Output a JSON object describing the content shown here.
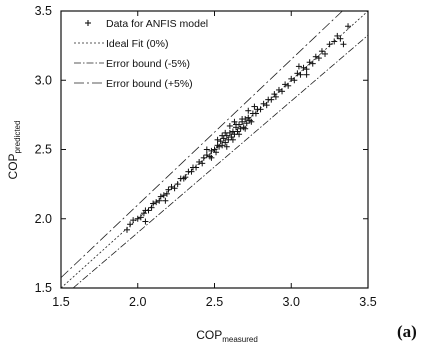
{
  "chart_data": {
    "type": "scatter",
    "xlabel": "COP",
    "xlabel_subscript": "measured",
    "ylabel": "COP",
    "ylabel_subscript": "predicted",
    "xlim": [
      1.5,
      3.5
    ],
    "ylim": [
      1.5,
      3.5
    ],
    "xticks": [
      "1.5",
      "2.0",
      "2.5",
      "3.0",
      "3.5"
    ],
    "yticks": [
      "1.5",
      "2.0",
      "2.5",
      "3.0",
      "3.5"
    ],
    "grid": false,
    "legend_position": "top-left",
    "legend": [
      {
        "label": "Data for ANFIS model",
        "style": "marker-plus"
      },
      {
        "label": "Ideal Fit (0%)",
        "style": "dotted"
      },
      {
        "label": "Error bound (-5%)",
        "style": "dash-dot"
      },
      {
        "label": "Error bound (+5%)",
        "style": "dash-dot-long"
      }
    ],
    "lines": [
      {
        "name": "Ideal Fit (0%)",
        "factor": 1.0
      },
      {
        "name": "Error bound (-5%)",
        "factor": 0.95
      },
      {
        "name": "Error bound (+5%)",
        "factor": 1.05
      }
    ],
    "series": [
      {
        "name": "Data for ANFIS model",
        "x": [
          1.93,
          1.95,
          1.97,
          2.0,
          2.02,
          2.04,
          2.05,
          2.07,
          2.09,
          2.1,
          2.12,
          2.14,
          2.15,
          2.17,
          2.19,
          2.2,
          2.22,
          2.24,
          2.26,
          2.28,
          2.3,
          2.31,
          2.33,
          2.35,
          2.36,
          2.38,
          2.4,
          2.42,
          2.43,
          2.45,
          2.47,
          2.48,
          2.5,
          2.51,
          2.52,
          2.53,
          2.54,
          2.55,
          2.56,
          2.57,
          2.58,
          2.59,
          2.6,
          2.61,
          2.62,
          2.63,
          2.64,
          2.65,
          2.66,
          2.67,
          2.68,
          2.69,
          2.7,
          2.71,
          2.72,
          2.73,
          2.75,
          2.77,
          2.78,
          2.8,
          2.82,
          2.84,
          2.85,
          2.87,
          2.89,
          2.9,
          2.92,
          2.94,
          2.96,
          2.98,
          3.0,
          3.02,
          3.04,
          3.06,
          3.08,
          3.1,
          3.12,
          3.14,
          3.16,
          3.18,
          3.2,
          3.22,
          3.25,
          3.28,
          3.3,
          3.32,
          3.34,
          3.37,
          2.6,
          2.62,
          2.58,
          2.55,
          2.64,
          2.66,
          2.68,
          2.52,
          2.7,
          2.72,
          2.45,
          2.48,
          2.57,
          2.63,
          2.74,
          2.76,
          3.05,
          3.1,
          2.05,
          2.18
        ],
        "y": [
          1.92,
          1.96,
          1.99,
          2.0,
          2.01,
          2.04,
          2.06,
          2.06,
          2.08,
          2.11,
          2.12,
          2.13,
          2.16,
          2.17,
          2.18,
          2.21,
          2.23,
          2.22,
          2.25,
          2.29,
          2.29,
          2.3,
          2.34,
          2.34,
          2.37,
          2.37,
          2.41,
          2.4,
          2.44,
          2.46,
          2.45,
          2.49,
          2.5,
          2.48,
          2.53,
          2.52,
          2.56,
          2.53,
          2.58,
          2.55,
          2.6,
          2.57,
          2.62,
          2.59,
          2.63,
          2.61,
          2.66,
          2.63,
          2.68,
          2.65,
          2.7,
          2.66,
          2.72,
          2.69,
          2.73,
          2.71,
          2.76,
          2.76,
          2.79,
          2.79,
          2.83,
          2.82,
          2.86,
          2.86,
          2.9,
          2.88,
          2.93,
          2.92,
          2.97,
          2.96,
          3.01,
          3.0,
          3.05,
          3.04,
          3.09,
          3.08,
          3.13,
          3.12,
          3.17,
          3.16,
          3.21,
          3.19,
          3.26,
          3.28,
          3.32,
          3.3,
          3.26,
          3.39,
          2.67,
          2.57,
          2.52,
          2.6,
          2.68,
          2.61,
          2.72,
          2.57,
          2.65,
          2.78,
          2.5,
          2.44,
          2.62,
          2.7,
          2.7,
          2.81,
          3.1,
          3.04,
          1.98,
          2.13
        ]
      }
    ]
  },
  "panel_label": "(a)"
}
